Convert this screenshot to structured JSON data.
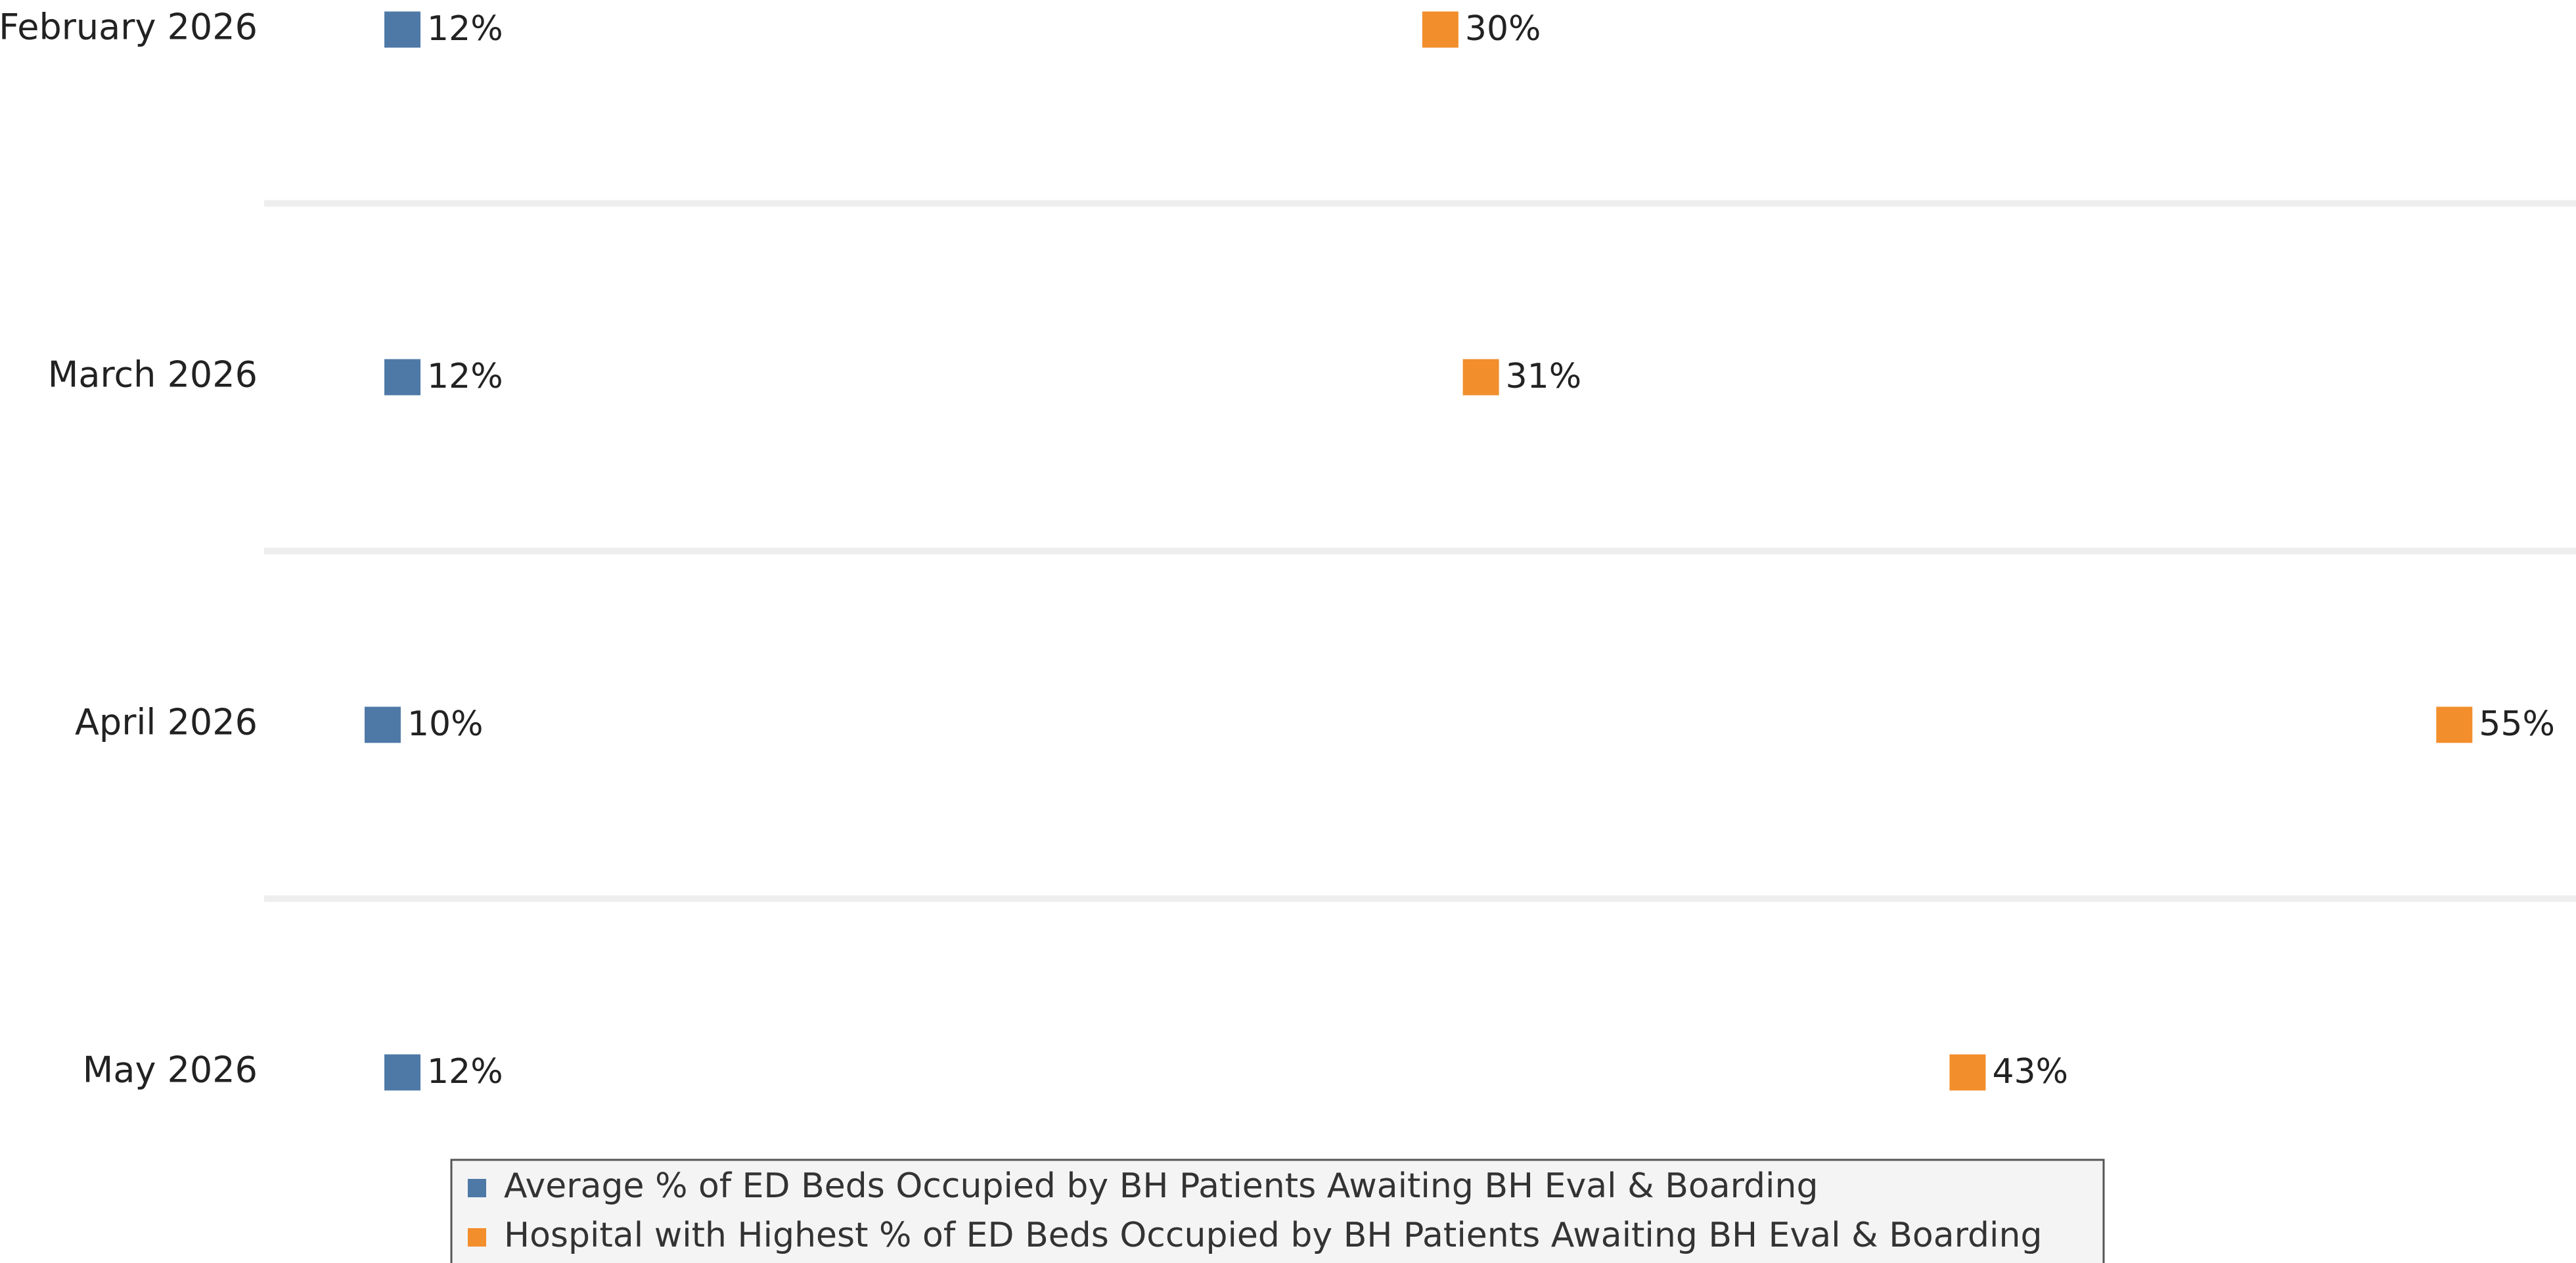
{
  "chart_data": {
    "type": "dot",
    "categories": [
      "February 2026",
      "March 2026",
      "April 2026",
      "May 2026"
    ],
    "series": [
      {
        "name": "Average % of ED Beds Occupied by BH Patients Awaiting BH Eval & Boarding",
        "color": "#4e79a7",
        "axis": "x2",
        "values": [
          12,
          12,
          10,
          12
        ],
        "value_labels": [
          "12%",
          "12%",
          "10%",
          "12%"
        ]
      },
      {
        "name": "Hospital with Highest % of ED Beds Occupied by BH Patients Awaiting BH Eval & Boarding",
        "color": "#f28e2b",
        "values": [
          30,
          31,
          55,
          43
        ],
        "value_labels": [
          "30%",
          "31%",
          "55%",
          "43%"
        ]
      }
    ],
    "xlim": [
      1,
      58
    ],
    "x2lim": [
      -2,
      232
    ]
  }
}
